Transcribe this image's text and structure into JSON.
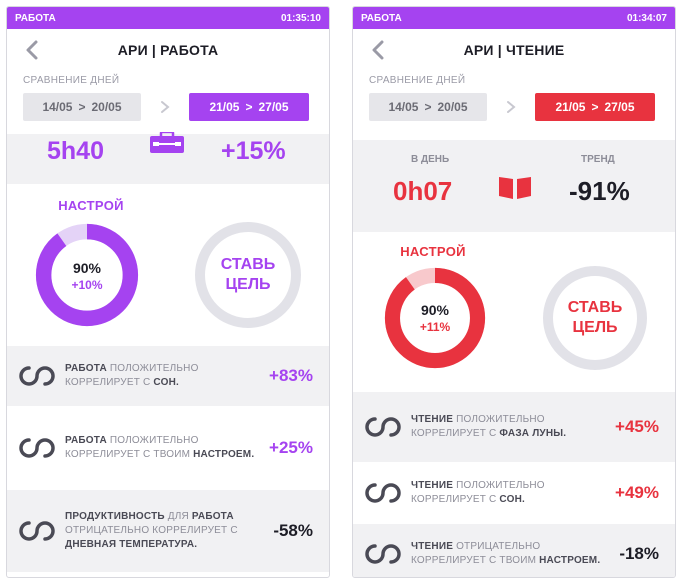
{
  "left": {
    "status": {
      "label": "РАБОТА",
      "time": "01:35:10"
    },
    "header": {
      "title": "АРИ | РАБОТА"
    },
    "compare": {
      "label": "СРАВНЕНИЕ ДНЕЙ",
      "prev_start": "14/05",
      "prev_end": "20/05",
      "cur_start": "21/05",
      "cur_end": "27/05",
      "sep": ">"
    },
    "stats": {
      "per_day": "5h40",
      "trend": "+15%",
      "icon": "briefcase-icon"
    },
    "mood": {
      "label": "НАСТРОЙ",
      "value": "90%",
      "delta": "+10%",
      "progress": 0.9
    },
    "goal": {
      "line1": "СТАВЬ",
      "line2": "ЦЕЛЬ"
    },
    "correlations": [
      {
        "t1": "РАБОТА",
        "t2": " ПОЛОЖИТЕЛЬНО КОРРЕЛИРУЕТ С ",
        "t3": "СОН.",
        "t4": "",
        "t5": "",
        "value": "+83%"
      },
      {
        "t1": "РАБОТА",
        "t2": " ПОЛОЖИТЕЛЬНО КОРРЕЛИРУЕТ С ТВОИМ ",
        "t3": "НАСТРОЕМ.",
        "t4": "",
        "t5": "",
        "value": "+25%"
      },
      {
        "t1": "ПРОДУКТИВНОСТЬ",
        "t2": " ДЛЯ ",
        "t3": "РАБОТА",
        "t4": " ОТРИЦАТЕЛЬНО КОРРЕЛИРУЕТ С ",
        "t5": "ДНЕВНАЯ ТЕМПЕРАТУРА.",
        "value": "-58%"
      }
    ],
    "accent": "#a543f0"
  },
  "right": {
    "status": {
      "label": "РАБОТА",
      "time": "01:34:07"
    },
    "header": {
      "title": "АРИ | ЧТЕНИЕ"
    },
    "compare": {
      "label": "СРАВНЕНИЕ ДНЕЙ",
      "prev_start": "14/05",
      "prev_end": "20/05",
      "cur_start": "21/05",
      "cur_end": "27/05",
      "sep": ">"
    },
    "stats": {
      "per_day_label": "В ДЕНЬ",
      "per_day": "0h07",
      "trend_label": "ТРЕНД",
      "trend": "-91%",
      "icon": "book-icon"
    },
    "mood": {
      "label": "НАСТРОЙ",
      "value": "90%",
      "delta": "+11%",
      "progress": 0.9
    },
    "goal": {
      "line1": "СТАВЬ",
      "line2": "ЦЕЛЬ"
    },
    "correlations": [
      {
        "t1": "ЧТЕНИЕ",
        "t2": " ПОЛОЖИТЕЛЬНО КОРРЕЛИРУЕТ С ",
        "t3": "ФАЗА ЛУНЫ.",
        "value": "+45%"
      },
      {
        "t1": "ЧТЕНИЕ",
        "t2": " ПОЛОЖИТЕЛЬНО КОРРЕЛИРУЕТ С ",
        "t3": "СОН.",
        "value": "+49%"
      },
      {
        "t1": "ЧТЕНИЕ",
        "t2": " ОТРИЦАТЕЛЬНО КОРРЕЛИРУЕТ С ТВОИМ ",
        "t3": "НАСТРОЕМ.",
        "value": "-18%"
      }
    ],
    "accent": "#e8333f"
  }
}
